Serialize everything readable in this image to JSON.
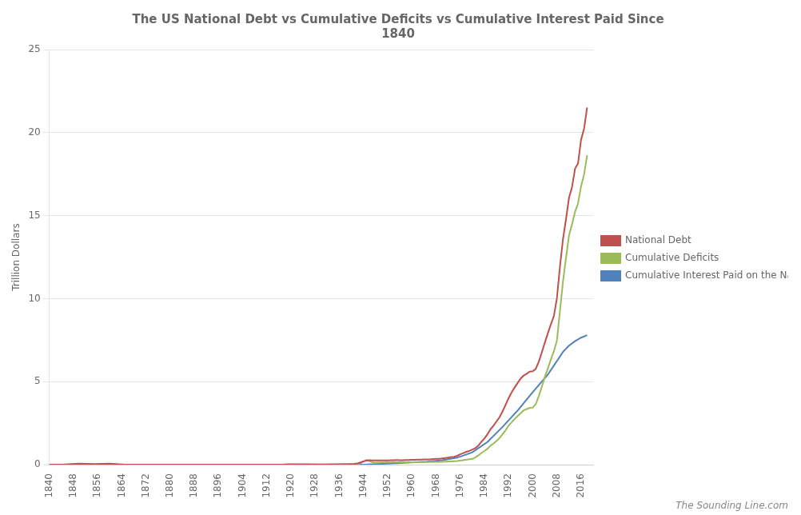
{
  "chart_data": {
    "type": "line",
    "title": "The US National Debt vs Cumulative Deficits vs Cumulative Interest Paid Since\n1840",
    "y_label": "Trillion Dollars",
    "annotations": [
      "The Sounding Line.com"
    ],
    "xlim": [
      1840,
      2020
    ],
    "ylim": [
      0,
      25
    ],
    "xticks": [
      1840,
      1848,
      1856,
      1864,
      1872,
      1880,
      1888,
      1896,
      1904,
      1912,
      1920,
      1928,
      1936,
      1944,
      1952,
      1960,
      1968,
      1976,
      1984,
      1992,
      2000,
      2008,
      2016
    ],
    "yticks": [
      0,
      5,
      10,
      15,
      20,
      25
    ],
    "grid": "y",
    "legend": "right",
    "series": [
      {
        "name": "National Debt",
        "color": "#C0504D",
        "x": [
          1840,
          1845,
          1850,
          1855,
          1860,
          1865,
          1870,
          1875,
          1880,
          1885,
          1890,
          1895,
          1900,
          1905,
          1910,
          1915,
          1916,
          1917,
          1918,
          1919,
          1920,
          1925,
          1930,
          1935,
          1940,
          1941,
          1942,
          1943,
          1944,
          1945,
          1946,
          1947,
          1948,
          1949,
          1950,
          1951,
          1952,
          1953,
          1954,
          1955,
          1956,
          1957,
          1958,
          1959,
          1960,
          1961,
          1962,
          1963,
          1964,
          1965,
          1966,
          1967,
          1968,
          1969,
          1970,
          1971,
          1972,
          1973,
          1974,
          1975,
          1976,
          1977,
          1978,
          1979,
          1980,
          1981,
          1982,
          1983,
          1984,
          1985,
          1986,
          1987,
          1988,
          1989,
          1990,
          1991,
          1992,
          1993,
          1994,
          1995,
          1996,
          1997,
          1998,
          1999,
          2000,
          2001,
          2002,
          2003,
          2004,
          2005,
          2006,
          2007,
          2008,
          2009,
          2010,
          2011,
          2012,
          2013,
          2014,
          2015,
          2016,
          2017,
          2018
        ],
        "values": [
          0.004,
          0.016,
          0.063,
          0.036,
          0.065,
          0.003,
          0.003,
          0.002,
          0.002,
          0.002,
          0.001,
          0.001,
          0.001,
          0.001,
          0.001,
          0.001,
          0.001,
          0.003,
          0.012,
          0.025,
          0.024,
          0.021,
          0.016,
          0.029,
          0.043,
          0.049,
          0.072,
          0.136,
          0.201,
          0.259,
          0.269,
          0.258,
          0.252,
          0.253,
          0.257,
          0.255,
          0.259,
          0.266,
          0.271,
          0.274,
          0.273,
          0.271,
          0.276,
          0.285,
          0.286,
          0.289,
          0.298,
          0.306,
          0.312,
          0.317,
          0.32,
          0.341,
          0.347,
          0.354,
          0.371,
          0.398,
          0.427,
          0.458,
          0.474,
          0.533,
          0.62,
          0.699,
          0.772,
          0.827,
          0.908,
          0.995,
          1.142,
          1.377,
          1.572,
          1.823,
          2.125,
          2.35,
          2.602,
          2.857,
          3.207,
          3.598,
          4.002,
          4.351,
          4.644,
          4.921,
          5.182,
          5.369,
          5.478,
          5.606,
          5.629,
          5.77,
          6.198,
          6.76,
          7.355,
          7.905,
          8.451,
          8.951,
          10.025,
          11.91,
          13.562,
          14.764,
          16.066,
          16.719,
          17.824,
          18.151,
          19.573,
          20.245,
          21.516
        ]
      },
      {
        "name": "Cumulative Deficits",
        "color": "#9BBB59",
        "x": [
          1840,
          1900,
          1916,
          1917,
          1918,
          1919,
          1920,
          1925,
          1930,
          1935,
          1940,
          1941,
          1942,
          1943,
          1944,
          1945,
          1946,
          1947,
          1948,
          1949,
          1950,
          1955,
          1960,
          1965,
          1970,
          1975,
          1980,
          1981,
          1982,
          1983,
          1984,
          1985,
          1986,
          1987,
          1988,
          1989,
          1990,
          1991,
          1992,
          1993,
          1994,
          1995,
          1996,
          1997,
          1998,
          1999,
          2000,
          2001,
          2002,
          2003,
          2004,
          2005,
          2006,
          2007,
          2008,
          2009,
          2010,
          2011,
          2012,
          2013,
          2014,
          2015,
          2016,
          2017,
          2018
        ],
        "values": [
          0.0,
          0.0,
          0.0,
          0.0,
          0.0,
          0.0,
          0.0,
          0.0,
          0.0,
          0.0,
          0.0,
          0.01,
          0.04,
          0.09,
          0.19,
          0.28,
          0.22,
          0.15,
          0.12,
          0.13,
          0.14,
          0.15,
          0.15,
          0.16,
          0.17,
          0.22,
          0.35,
          0.43,
          0.56,
          0.7,
          0.82,
          0.96,
          1.14,
          1.27,
          1.43,
          1.6,
          1.83,
          2.07,
          2.35,
          2.55,
          2.74,
          2.93,
          3.1,
          3.27,
          3.35,
          3.42,
          3.44,
          3.65,
          4.13,
          4.69,
          5.28,
          5.79,
          6.33,
          6.84,
          7.46,
          9.23,
          11.01,
          12.44,
          13.8,
          14.47,
          15.22,
          15.74,
          16.77,
          17.48,
          18.64
        ]
      },
      {
        "name": "Cumulative Interest Paid on the National Debt",
        "color": "#4F81BD",
        "x": [
          1840,
          1900,
          1916,
          1920,
          1930,
          1940,
          1945,
          1950,
          1955,
          1960,
          1965,
          1970,
          1975,
          1980,
          1985,
          1990,
          1995,
          2000,
          2005,
          2008,
          2010,
          2012,
          2014,
          2015,
          2016,
          2017,
          2018
        ],
        "values": [
          0.0,
          0.0,
          0.0,
          0.0,
          0.0,
          0.0,
          0.01,
          0.05,
          0.09,
          0.13,
          0.18,
          0.27,
          0.42,
          0.74,
          1.36,
          2.27,
          3.26,
          4.37,
          5.43,
          6.24,
          6.79,
          7.17,
          7.44,
          7.55,
          7.65,
          7.72,
          7.8
        ]
      }
    ]
  }
}
